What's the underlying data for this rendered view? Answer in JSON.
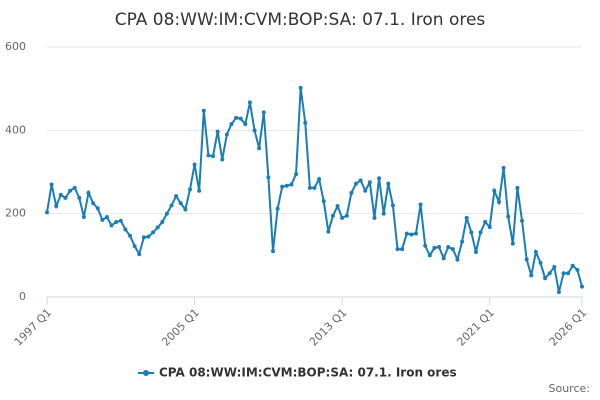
{
  "chart_data": {
    "type": "line",
    "title": "CPA 08:WW:IM:CVM:BOP:SA: 07.1. Iron ores",
    "categories": [
      "1997 Q1",
      null,
      null,
      null,
      null,
      null,
      null,
      null,
      null,
      null,
      null,
      null,
      null,
      null,
      null,
      null,
      null,
      null,
      null,
      null,
      null,
      null,
      null,
      null,
      null,
      null,
      null,
      null,
      null,
      null,
      null,
      null,
      "2005 Q1",
      null,
      null,
      null,
      null,
      null,
      null,
      null,
      null,
      null,
      null,
      null,
      null,
      null,
      null,
      null,
      null,
      null,
      null,
      null,
      null,
      null,
      null,
      null,
      null,
      null,
      null,
      null,
      null,
      null,
      null,
      null,
      "2013 Q1",
      null,
      null,
      null,
      null,
      null,
      null,
      null,
      null,
      null,
      null,
      null,
      null,
      null,
      null,
      null,
      null,
      null,
      null,
      null,
      null,
      null,
      null,
      null,
      null,
      null,
      null,
      null,
      null,
      null,
      null,
      null,
      "2021 Q1",
      null,
      null,
      null,
      null,
      null,
      null,
      null,
      null,
      null,
      null,
      null,
      null,
      null,
      null,
      null,
      null,
      null,
      null,
      null,
      "2026 Q1"
    ],
    "series": [
      {
        "name": "CPA 08:WW:IM:CVM:BOP:SA: 07.1. Iron ores",
        "color": "#1a7db6",
        "values": [
          203,
          270,
          218,
          245,
          238,
          255,
          262,
          238,
          192,
          250,
          225,
          213,
          185,
          192,
          172,
          180,
          183,
          162,
          147,
          122,
          103,
          143,
          145,
          155,
          167,
          180,
          200,
          220,
          242,
          225,
          210,
          258,
          318,
          255,
          447,
          340,
          338,
          397,
          330,
          390,
          415,
          430,
          428,
          415,
          467,
          400,
          357,
          443,
          287,
          110,
          212,
          265,
          267,
          270,
          295,
          502,
          418,
          262,
          262,
          283,
          230,
          157,
          195,
          218,
          190,
          195,
          250,
          272,
          280,
          255,
          275,
          190,
          285,
          200,
          272,
          220,
          115,
          115,
          152,
          150,
          152,
          222,
          123,
          100,
          118,
          120,
          93,
          120,
          115,
          90,
          133,
          190,
          155,
          108,
          155,
          180,
          168,
          255,
          228,
          310,
          193,
          128,
          262,
          183,
          90,
          52,
          108,
          82,
          45,
          57,
          72,
          12,
          57,
          57,
          75,
          65,
          25
        ]
      }
    ],
    "ylim": [
      0,
      600
    ],
    "yticks": [
      0,
      200,
      400,
      600
    ],
    "grid": true,
    "legend": "bottom",
    "source": "Source:"
  }
}
